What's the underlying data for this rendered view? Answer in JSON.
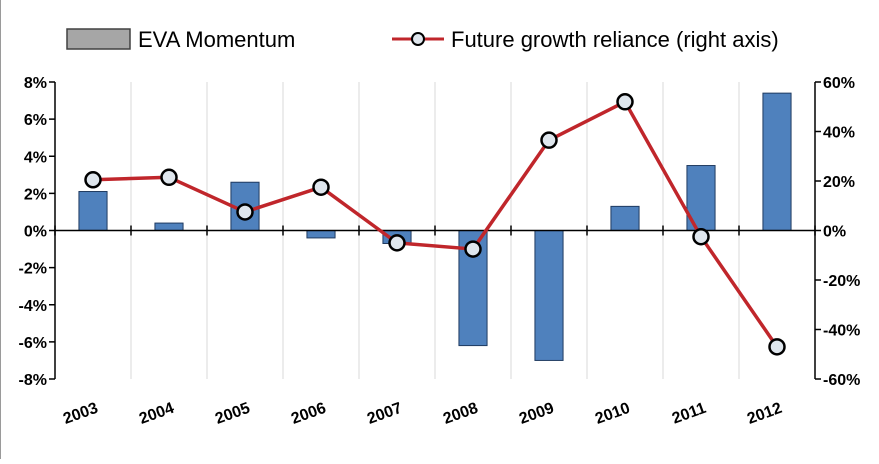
{
  "chart_data": {
    "type": "bar+line",
    "categories": [
      "2003",
      "2004",
      "2005",
      "2006",
      "2007",
      "2008",
      "2009",
      "2010",
      "2011",
      "2012"
    ],
    "series": [
      {
        "name": "EVA Momentum",
        "kind": "bar",
        "axis": "left",
        "values": [
          2.1,
          0.4,
          2.6,
          -0.4,
          -0.7,
          -6.2,
          -7.0,
          1.3,
          3.5,
          7.4
        ],
        "color": "#4f81bd"
      },
      {
        "name": "Future growth reliance (right axis)",
        "kind": "line",
        "axis": "right",
        "values": [
          20.5,
          21.5,
          7.5,
          17.5,
          -5,
          -7.5,
          36.5,
          52,
          -2.5,
          -47
        ],
        "color": "#c0262b",
        "marker_fill": "#dfe6ed"
      }
    ],
    "y_left": {
      "ylim": [
        -8,
        8
      ],
      "ticks": [
        8,
        6,
        4,
        2,
        0,
        -2,
        -4,
        -6,
        -8
      ],
      "tick_labels": [
        "8%",
        "6%",
        "4%",
        "2%",
        "0%",
        "-2%",
        "-4%",
        "-6%",
        "-8%"
      ]
    },
    "y_right": {
      "ylim": [
        -60,
        60
      ],
      "ticks": [
        60,
        40,
        20,
        0,
        -20,
        -40,
        -60
      ],
      "tick_labels": [
        "60%",
        "40%",
        "20%",
        "0%",
        "-20%",
        "-40%",
        "-60%"
      ]
    },
    "grid": "vertical",
    "legend": "top",
    "title": "",
    "xlabel": "",
    "ylabel": ""
  }
}
